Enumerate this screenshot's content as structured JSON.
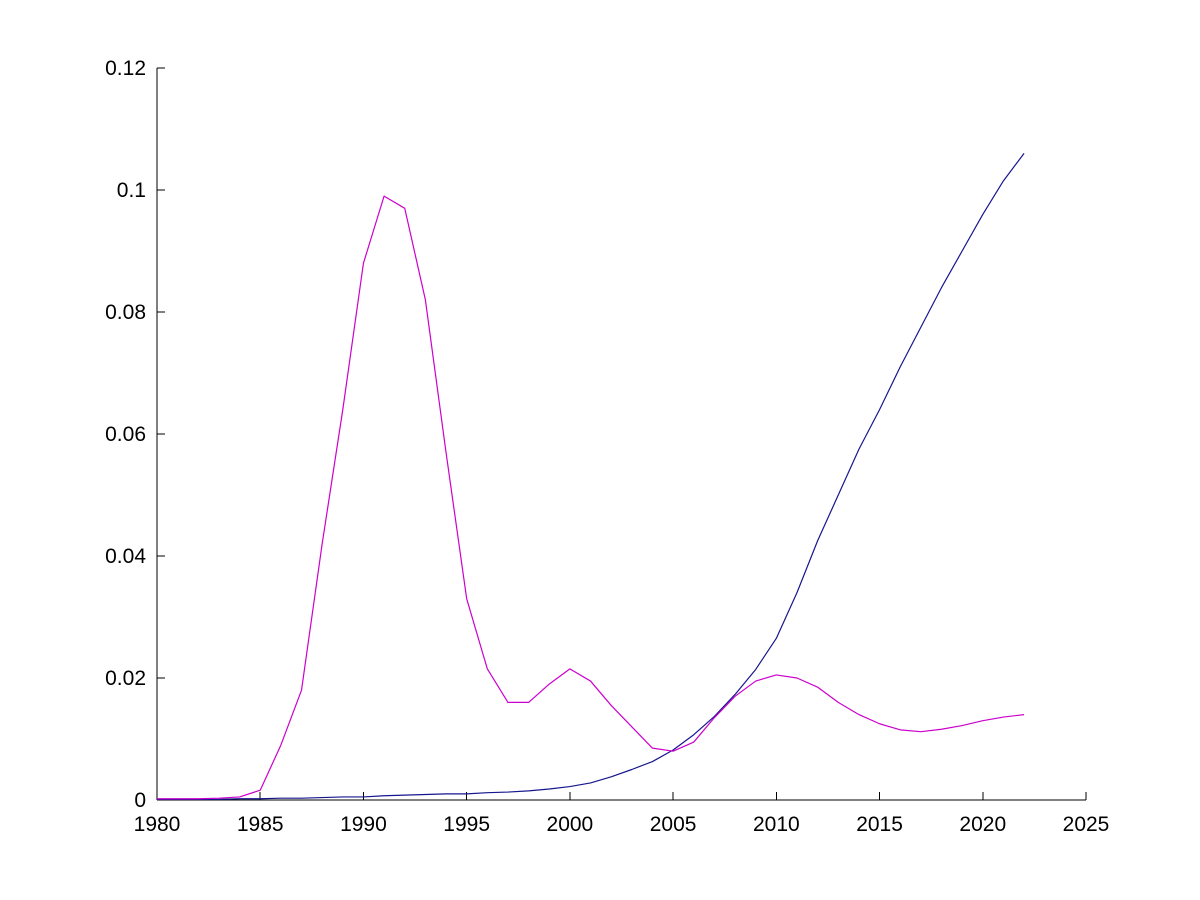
{
  "figure": {
    "background": "#ffffff",
    "axis_color": "#000000",
    "tick_label_color": "#000000"
  },
  "chart_data": {
    "type": "line",
    "title": "",
    "xlabel": "",
    "ylabel": "",
    "grid": false,
    "legend_position": "none",
    "xlim": [
      1980,
      2025
    ],
    "ylim": [
      0,
      0.12
    ],
    "xticks": [
      1980,
      1985,
      1990,
      1995,
      2000,
      2005,
      2010,
      2015,
      2020,
      2025
    ],
    "xtick_labels": [
      "1980",
      "1985",
      "1990",
      "1995",
      "2000",
      "2005",
      "2010",
      "2015",
      "2020",
      "2025"
    ],
    "yticks": [
      0,
      0.02,
      0.04,
      0.06,
      0.08,
      0.1,
      0.12
    ],
    "ytick_labels": [
      "0",
      "0.02",
      "0.04",
      "0.06",
      "0.08",
      "0.1",
      "0.12"
    ],
    "x": [
      1980,
      1981,
      1982,
      1983,
      1984,
      1985,
      1986,
      1987,
      1988,
      1989,
      1990,
      1991,
      1992,
      1993,
      1994,
      1995,
      1996,
      1997,
      1998,
      1999,
      2000,
      2001,
      2002,
      2003,
      2004,
      2005,
      2006,
      2007,
      2008,
      2009,
      2010,
      2011,
      2012,
      2013,
      2014,
      2015,
      2016,
      2017,
      2018,
      2019,
      2020,
      2021,
      2022
    ],
    "series": [
      {
        "name": "blue-series",
        "color": "#16168E",
        "values": [
          0.0001,
          0.0001,
          0.0001,
          0.0001,
          0.0002,
          0.0002,
          0.0003,
          0.0003,
          0.0004,
          0.0005,
          0.0005,
          0.0007,
          0.0008,
          0.0009,
          0.001,
          0.001,
          0.0012,
          0.0013,
          0.0015,
          0.0018,
          0.0022,
          0.0028,
          0.0038,
          0.005,
          0.0063,
          0.0082,
          0.0107,
          0.0137,
          0.0173,
          0.0214,
          0.0265,
          0.034,
          0.0425,
          0.05,
          0.0575,
          0.064,
          0.071,
          0.0775,
          0.084,
          0.09,
          0.096,
          0.1015,
          0.106
        ]
      },
      {
        "name": "magenta-series",
        "color": "#CC00CC",
        "values": [
          0.0002,
          0.0002,
          0.0002,
          0.0003,
          0.0005,
          0.0016,
          0.009,
          0.018,
          0.042,
          0.064,
          0.088,
          0.099,
          0.097,
          0.082,
          0.057,
          0.033,
          0.0215,
          0.016,
          0.016,
          0.019,
          0.0215,
          0.0195,
          0.0155,
          0.012,
          0.0085,
          0.008,
          0.0095,
          0.0135,
          0.017,
          0.0195,
          0.0205,
          0.02,
          0.0185,
          0.016,
          0.014,
          0.0125,
          0.0115,
          0.0112,
          0.0116,
          0.0122,
          0.013,
          0.0136,
          0.014
        ]
      }
    ]
  }
}
